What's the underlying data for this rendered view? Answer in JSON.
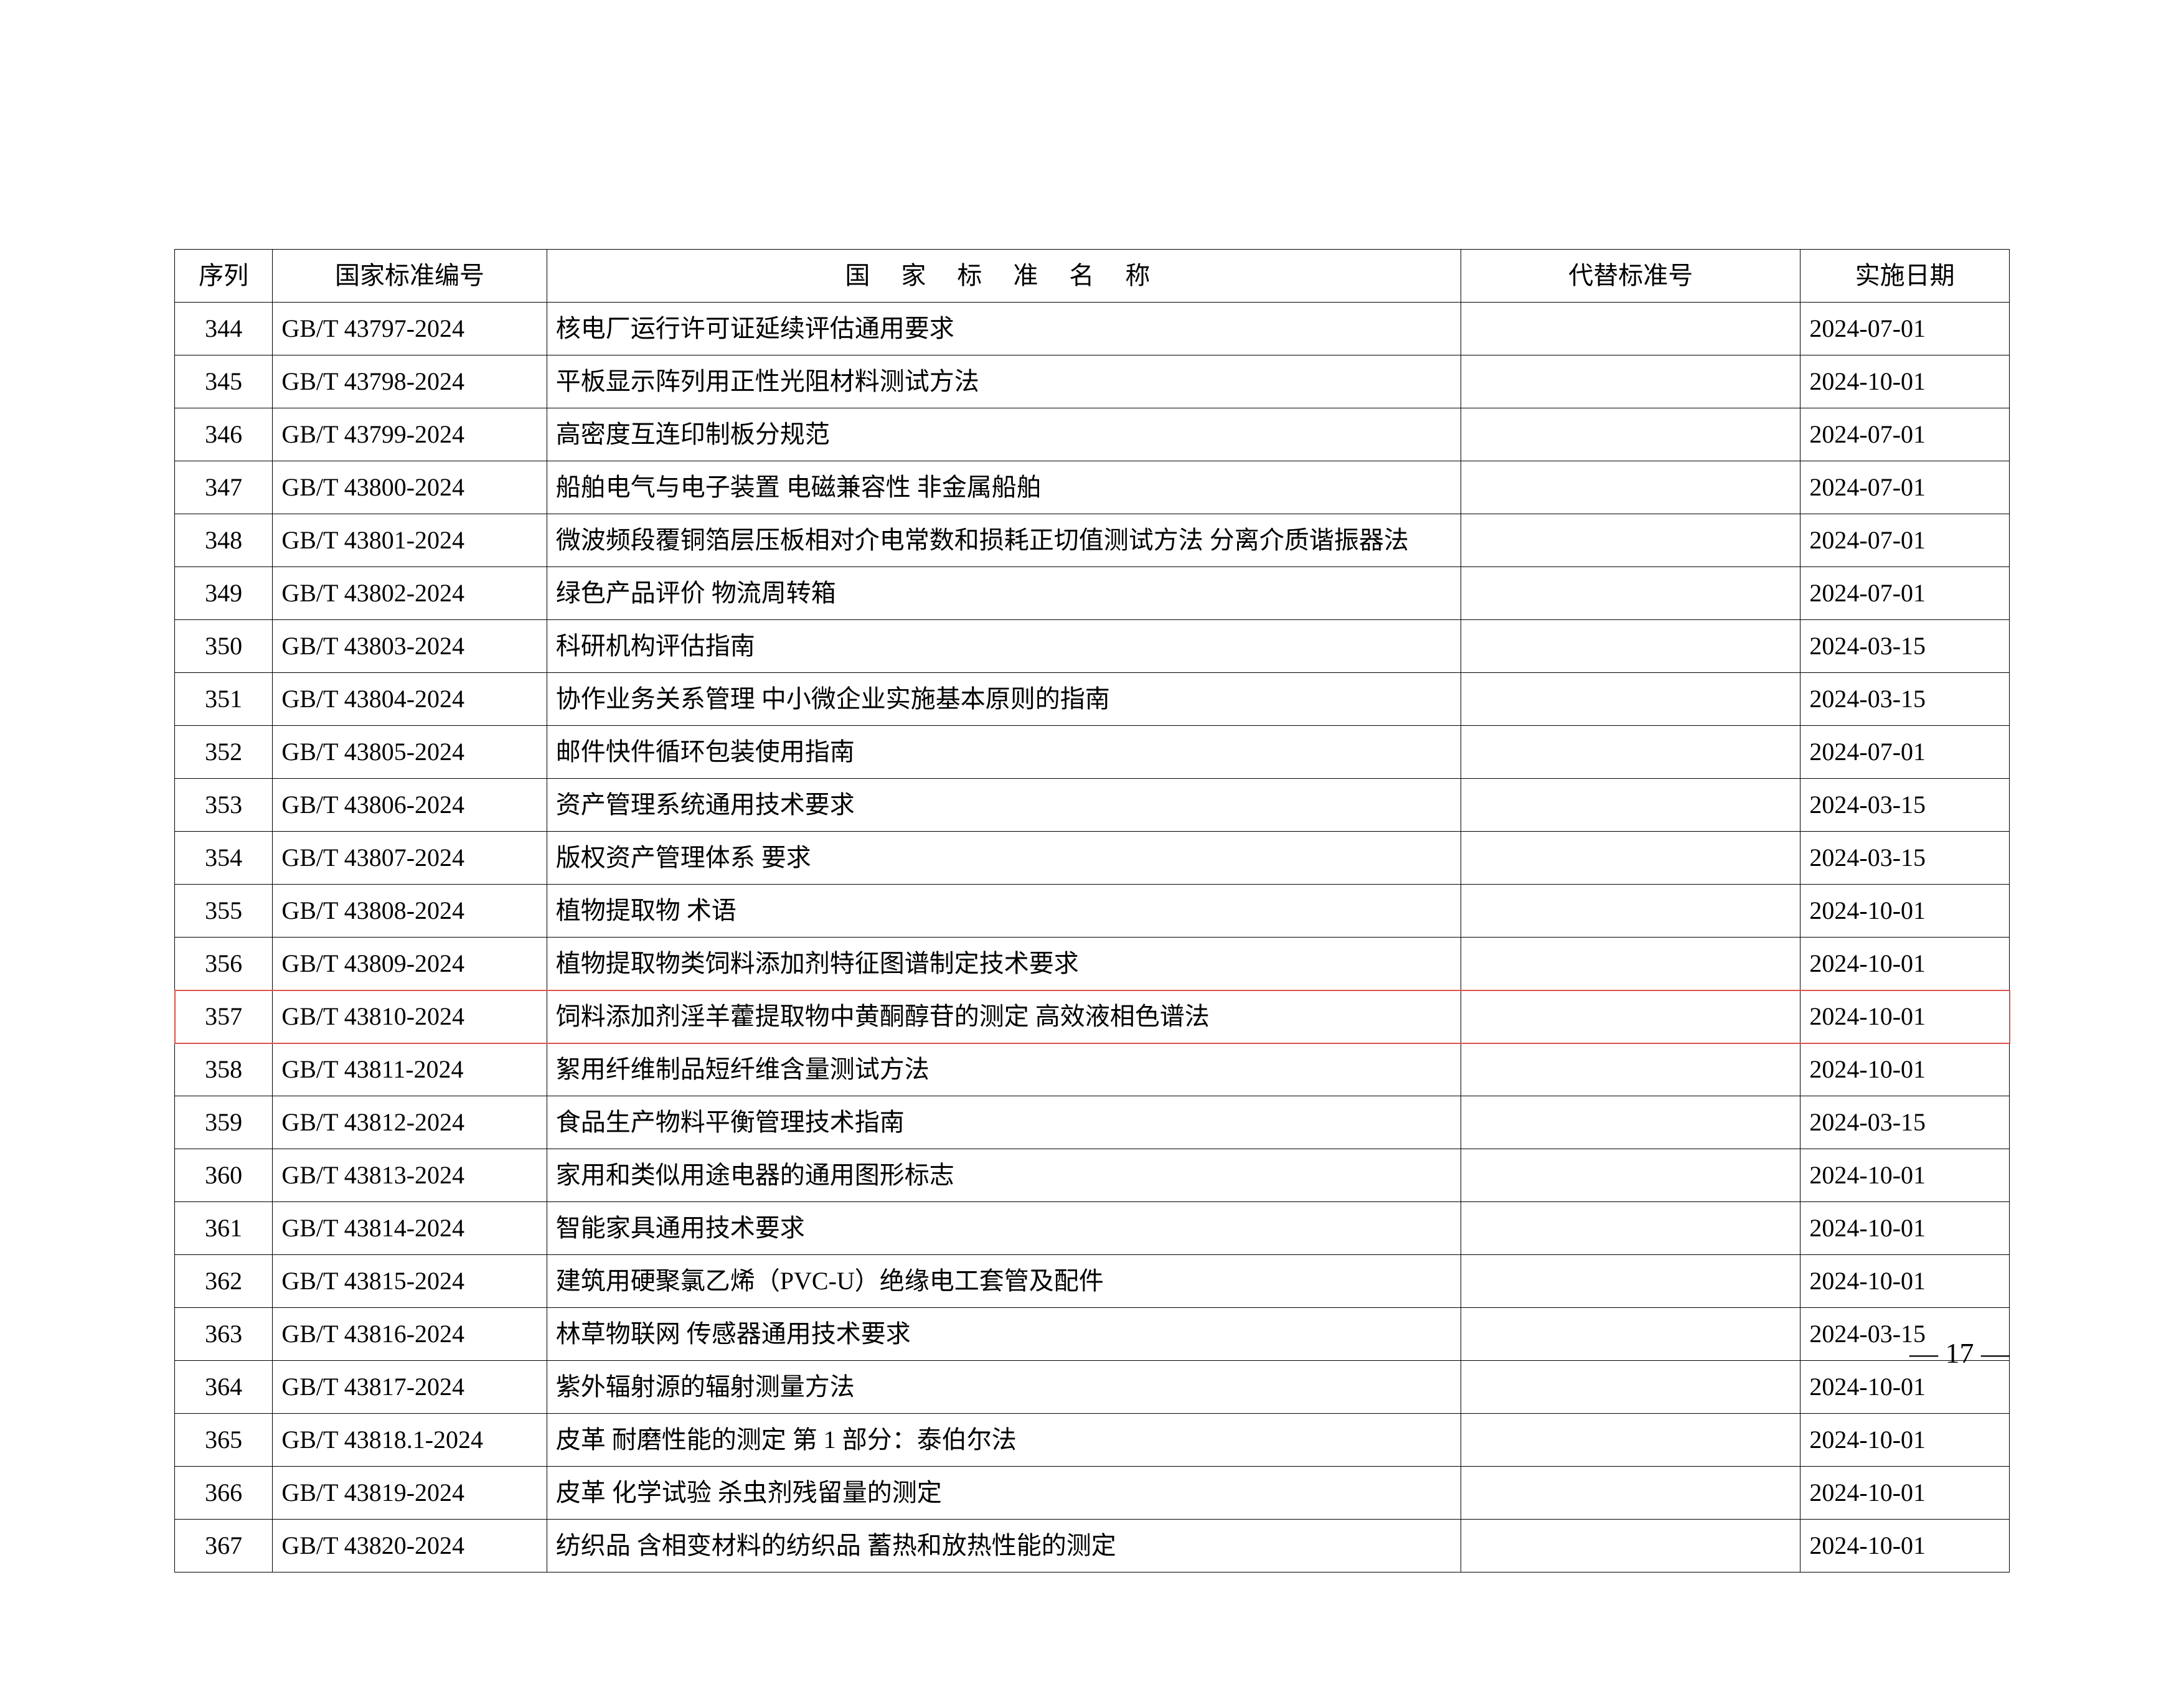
{
  "table": {
    "headers": {
      "seq": "序列",
      "code": "国家标准编号",
      "name": "国 家 标 准 名 称",
      "replace": "代替标准号",
      "date": "实施日期"
    },
    "rows": [
      {
        "seq": "344",
        "code": "GB/T 43797-2024",
        "name": "核电厂运行许可证延续评估通用要求",
        "replace": "",
        "date": "2024-07-01",
        "hl": false
      },
      {
        "seq": "345",
        "code": "GB/T 43798-2024",
        "name": "平板显示阵列用正性光阻材料测试方法",
        "replace": "",
        "date": "2024-10-01",
        "hl": false
      },
      {
        "seq": "346",
        "code": "GB/T 43799-2024",
        "name": "高密度互连印制板分规范",
        "replace": "",
        "date": "2024-07-01",
        "hl": false
      },
      {
        "seq": "347",
        "code": "GB/T 43800-2024",
        "name": "船舶电气与电子装置  电磁兼容性  非金属船舶",
        "replace": "",
        "date": "2024-07-01",
        "hl": false
      },
      {
        "seq": "348",
        "code": "GB/T 43801-2024",
        "name": "微波频段覆铜箔层压板相对介电常数和损耗正切值测试方法  分离介质谐振器法",
        "replace": "",
        "date": "2024-07-01",
        "hl": false
      },
      {
        "seq": "349",
        "code": "GB/T 43802-2024",
        "name": "绿色产品评价  物流周转箱",
        "replace": "",
        "date": "2024-07-01",
        "hl": false
      },
      {
        "seq": "350",
        "code": "GB/T 43803-2024",
        "name": "科研机构评估指南",
        "replace": "",
        "date": "2024-03-15",
        "hl": false
      },
      {
        "seq": "351",
        "code": "GB/T 43804-2024",
        "name": "协作业务关系管理  中小微企业实施基本原则的指南",
        "replace": "",
        "date": "2024-03-15",
        "hl": false
      },
      {
        "seq": "352",
        "code": "GB/T 43805-2024",
        "name": "邮件快件循环包装使用指南",
        "replace": "",
        "date": "2024-07-01",
        "hl": false
      },
      {
        "seq": "353",
        "code": "GB/T 43806-2024",
        "name": "资产管理系统通用技术要求",
        "replace": "",
        "date": "2024-03-15",
        "hl": false
      },
      {
        "seq": "354",
        "code": "GB/T 43807-2024",
        "name": "版权资产管理体系  要求",
        "replace": "",
        "date": "2024-03-15",
        "hl": false
      },
      {
        "seq": "355",
        "code": "GB/T 43808-2024",
        "name": "植物提取物  术语",
        "replace": "",
        "date": "2024-10-01",
        "hl": false
      },
      {
        "seq": "356",
        "code": "GB/T 43809-2024",
        "name": "植物提取物类饲料添加剂特征图谱制定技术要求",
        "replace": "",
        "date": "2024-10-01",
        "hl": false
      },
      {
        "seq": "357",
        "code": "GB/T 43810-2024",
        "name": "饲料添加剂淫羊藿提取物中黄酮醇苷的测定  高效液相色谱法",
        "replace": "",
        "date": "2024-10-01",
        "hl": true
      },
      {
        "seq": "358",
        "code": "GB/T 43811-2024",
        "name": "絮用纤维制品短纤维含量测试方法",
        "replace": "",
        "date": "2024-10-01",
        "hl": false
      },
      {
        "seq": "359",
        "code": "GB/T 43812-2024",
        "name": "食品生产物料平衡管理技术指南",
        "replace": "",
        "date": "2024-03-15",
        "hl": false
      },
      {
        "seq": "360",
        "code": "GB/T 43813-2024",
        "name": "家用和类似用途电器的通用图形标志",
        "replace": "",
        "date": "2024-10-01",
        "hl": false
      },
      {
        "seq": "361",
        "code": "GB/T 43814-2024",
        "name": "智能家具通用技术要求",
        "replace": "",
        "date": "2024-10-01",
        "hl": false
      },
      {
        "seq": "362",
        "code": "GB/T 43815-2024",
        "name": "建筑用硬聚氯乙烯（PVC-U）绝缘电工套管及配件",
        "replace": "",
        "date": "2024-10-01",
        "hl": false
      },
      {
        "seq": "363",
        "code": "GB/T 43816-2024",
        "name": "林草物联网  传感器通用技术要求",
        "replace": "",
        "date": "2024-03-15",
        "hl": false
      },
      {
        "seq": "364",
        "code": "GB/T 43817-2024",
        "name": "紫外辐射源的辐射测量方法",
        "replace": "",
        "date": "2024-10-01",
        "hl": false
      },
      {
        "seq": "365",
        "code": "GB/T 43818.1-2024",
        "name": "皮革  耐磨性能的测定  第 1 部分：泰伯尔法",
        "replace": "",
        "date": "2024-10-01",
        "hl": false
      },
      {
        "seq": "366",
        "code": "GB/T 43819-2024",
        "name": "皮革  化学试验  杀虫剂残留量的测定",
        "replace": "",
        "date": "2024-10-01",
        "hl": false
      },
      {
        "seq": "367",
        "code": "GB/T 43820-2024",
        "name": "纺织品  含相变材料的纺织品  蓄热和放热性能的测定",
        "replace": "",
        "date": "2024-10-01",
        "hl": false
      }
    ]
  },
  "page_number": "— 17 —"
}
